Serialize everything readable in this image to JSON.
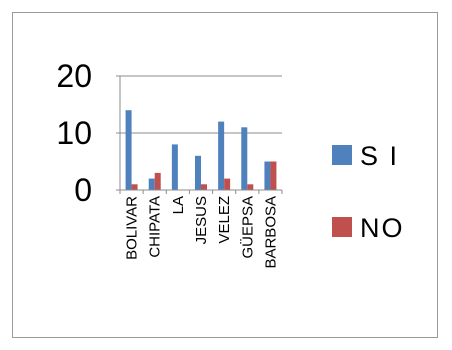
{
  "chart_data": {
    "type": "bar",
    "categories": [
      "BOLIVAR",
      "CHIPATA",
      "LA",
      "JESUS",
      "VELEZ",
      "GÜEPSA",
      "BARBOSA"
    ],
    "series": [
      {
        "name": "S I",
        "color": "#4f81bd",
        "values": [
          14,
          2,
          8,
          6,
          12,
          11,
          5
        ]
      },
      {
        "name": "NO",
        "color": "#c0504d",
        "values": [
          1,
          3,
          0,
          1,
          2,
          1,
          5
        ]
      }
    ],
    "y_ticks": [
      "0",
      "10",
      "20"
    ],
    "ylim": [
      0,
      20
    ],
    "grid": true,
    "legend_position": "right"
  }
}
